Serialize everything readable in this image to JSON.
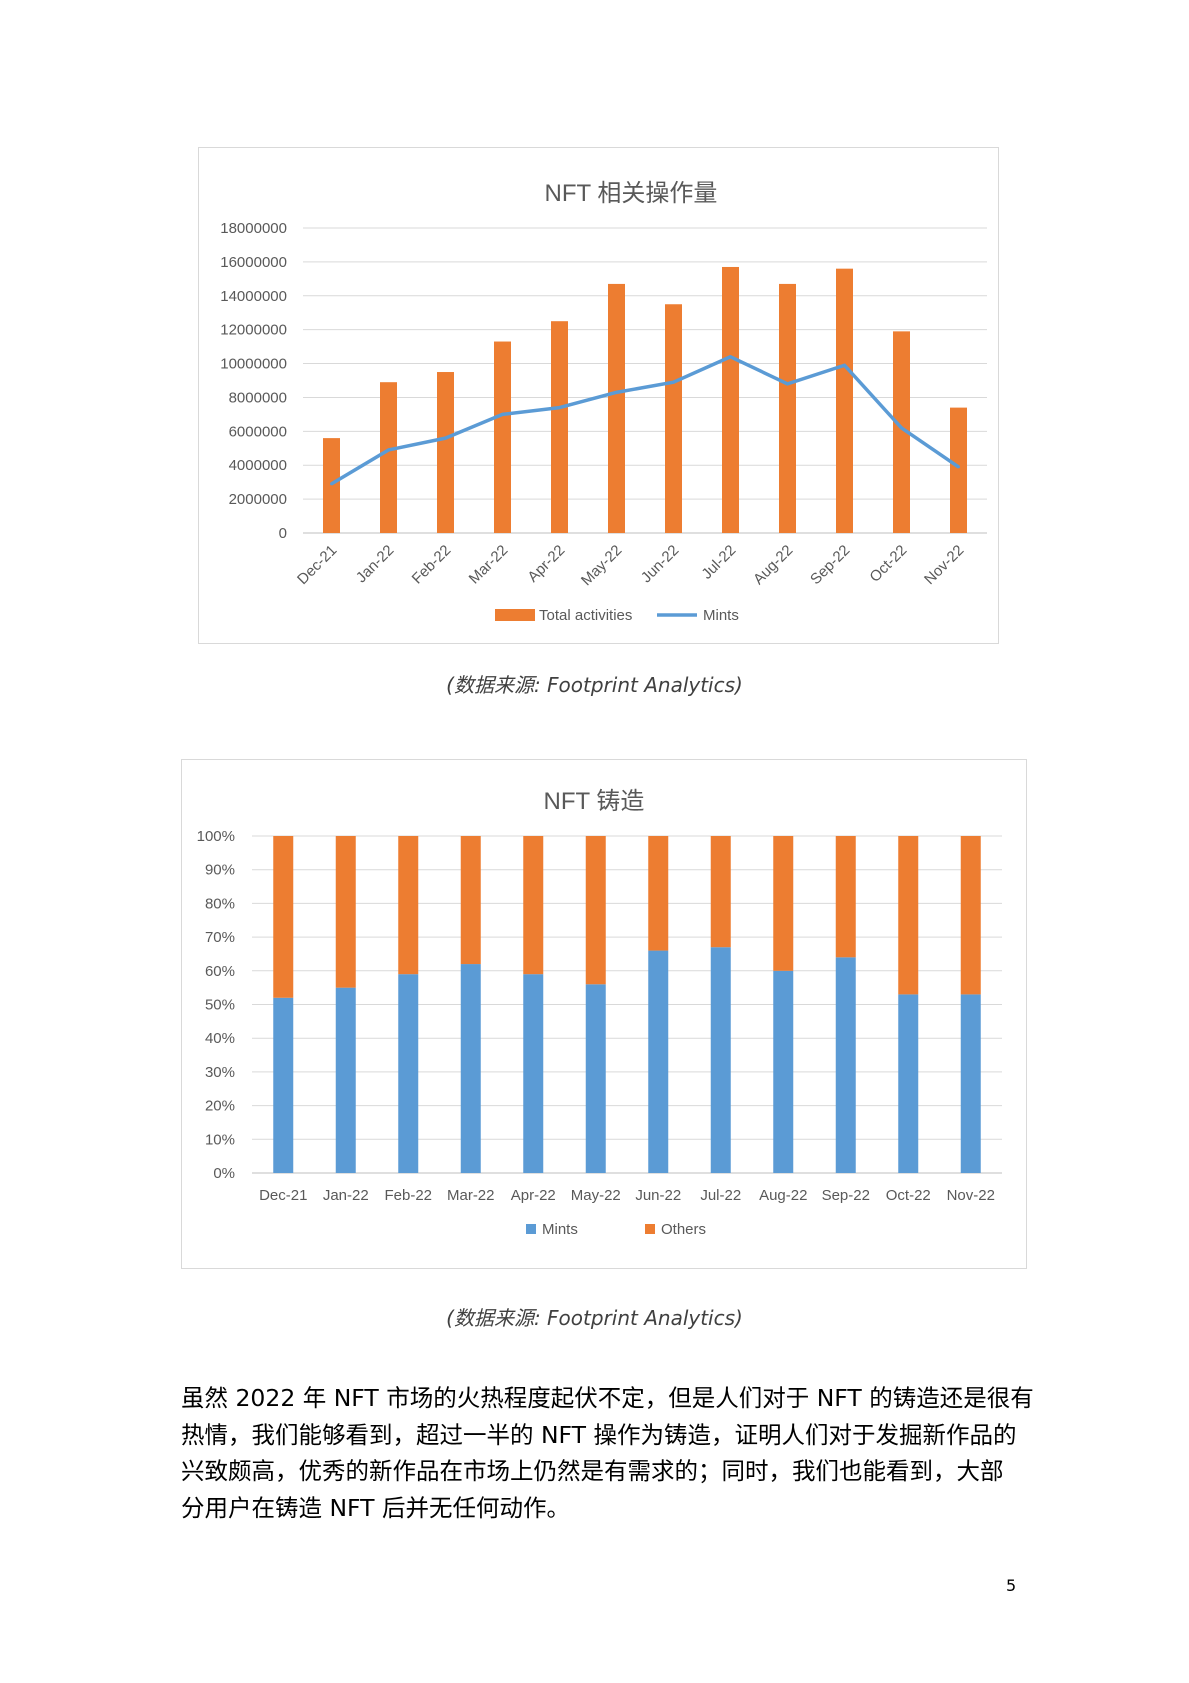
{
  "charts": [
    {
      "type": "bar+line",
      "title": "NFT 相关操作量",
      "categories": [
        "Dec-21",
        "Jan-22",
        "Feb-22",
        "Mar-22",
        "Apr-22",
        "May-22",
        "Jun-22",
        "Jul-22",
        "Aug-22",
        "Sep-22",
        "Oct-22",
        "Nov-22"
      ],
      "series": [
        {
          "name": "Total activities",
          "kind": "bar",
          "color": "#ed7d31",
          "values": [
            5600000,
            8900000,
            9500000,
            11300000,
            12500000,
            14700000,
            13500000,
            15700000,
            14700000,
            15600000,
            11900000,
            7400000
          ]
        },
        {
          "name": "Mints",
          "kind": "line",
          "color": "#5b9bd5",
          "values": [
            2900000,
            4900000,
            5600000,
            7000000,
            7400000,
            8300000,
            8900000,
            10400000,
            8800000,
            9900000,
            6200000,
            3900000
          ]
        }
      ],
      "y_ticks": [
        "0",
        "2000000",
        "4000000",
        "6000000",
        "8000000",
        "10000000",
        "12000000",
        "14000000",
        "16000000",
        "18000000"
      ],
      "ylim": [
        0,
        18000000
      ],
      "grid": true,
      "legend_position": "bottom",
      "x_labels_rotated": true
    },
    {
      "type": "stacked-bar-100",
      "title": "NFT 铸造",
      "categories": [
        "Dec-21",
        "Jan-22",
        "Feb-22",
        "Mar-22",
        "Apr-22",
        "May-22",
        "Jun-22",
        "Jul-22",
        "Aug-22",
        "Sep-22",
        "Oct-22",
        "Nov-22"
      ],
      "series": [
        {
          "name": "Mints",
          "color": "#5b9bd5",
          "values": [
            52,
            55,
            59,
            62,
            59,
            56,
            66,
            67,
            60,
            64,
            53,
            53
          ]
        },
        {
          "name": "Others",
          "color": "#ed7d31",
          "values": [
            48,
            45,
            41,
            38,
            41,
            44,
            34,
            33,
            40,
            36,
            47,
            47
          ]
        }
      ],
      "y_ticks": [
        "0%",
        "10%",
        "20%",
        "30%",
        "40%",
        "50%",
        "60%",
        "70%",
        "80%",
        "90%",
        "100%"
      ],
      "ylim": [
        0,
        100
      ],
      "grid": true,
      "legend_position": "bottom",
      "x_labels_rotated": false
    }
  ],
  "captions": [
    "(数据来源: Footprint Analytics)",
    "(数据来源: Footprint Analytics)"
  ],
  "paragraph": [
    "虽然 2022 年 NFT 市场的火热程度起伏不定，但是人们对于 NFT 的铸造还是很有",
    "热情，我们能够看到，超过一半的 NFT 操作为铸造，证明人们对于发掘新作品的",
    "兴致颇高，优秀的新作品在市场上仍然是有需求的；同时，我们也能看到，大部",
    "分用户在铸造 NFT 后并无任何动作。"
  ],
  "page_number": "5"
}
